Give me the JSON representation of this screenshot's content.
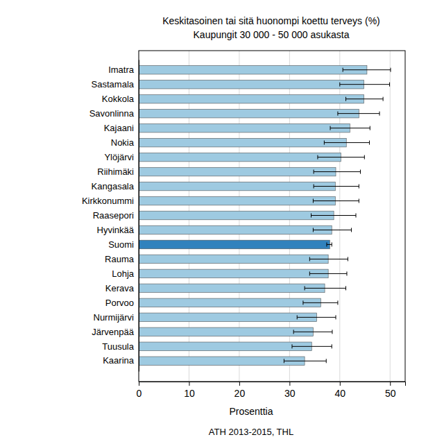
{
  "chart_data": {
    "type": "bar",
    "orientation": "horizontal",
    "title": "Keskitasoinen tai sitä huonompi koettu terveys (%)",
    "subtitle": "Kaupungit 30 000 - 50 000 asukasta",
    "x_label": "Prosenttia",
    "annotation": "ATH 2013-2015, THL",
    "categories": [
      "Imatra",
      "Sastamala",
      "Kokkola",
      "Savonlinna",
      "Kajaani",
      "Nokia",
      "Ylöjärvi",
      "Riihimäki",
      "Kangasala",
      "Kirkkonummi",
      "Raasepori",
      "Hyvinkää",
      "Suomi",
      "Rauma",
      "Lohja",
      "Kerava",
      "Porvoo",
      "Nurmijärvi",
      "Järvenpää",
      "Tuusula",
      "Kaarina"
    ],
    "values": [
      45.4,
      44.8,
      44.8,
      43.8,
      42.0,
      41.3,
      40.2,
      39.2,
      39.1,
      39.1,
      38.8,
      38.4,
      38.0,
      37.7,
      37.7,
      37.0,
      36.2,
      35.4,
      34.7,
      34.4,
      33.0
    ],
    "ci_lower": [
      40.6,
      40.0,
      41.2,
      39.6,
      38.1,
      36.9,
      35.6,
      34.8,
      34.8,
      34.7,
      34.3,
      34.7,
      37.4,
      34.0,
      34.0,
      33.0,
      32.7,
      31.5,
      30.8,
      30.5,
      28.9
    ],
    "ci_upper": [
      50.1,
      49.9,
      48.6,
      47.9,
      46.0,
      45.9,
      44.9,
      44.1,
      43.8,
      43.8,
      43.2,
      42.3,
      38.4,
      41.6,
      41.4,
      41.2,
      39.6,
      39.2,
      38.5,
      38.4,
      37.3
    ],
    "colors": [
      "#9ecae1",
      "#9ecae1",
      "#9ecae1",
      "#9ecae1",
      "#9ecae1",
      "#9ecae1",
      "#9ecae1",
      "#9ecae1",
      "#9ecae1",
      "#9ecae1",
      "#9ecae1",
      "#9ecae1",
      "#3182bd",
      "#9ecae1",
      "#9ecae1",
      "#9ecae1",
      "#9ecae1",
      "#9ecae1",
      "#9ecae1",
      "#9ecae1",
      "#9ecae1"
    ],
    "xlim": [
      0,
      53
    ],
    "xticks": [
      0,
      10,
      20,
      30,
      40,
      50
    ],
    "grid": true
  }
}
